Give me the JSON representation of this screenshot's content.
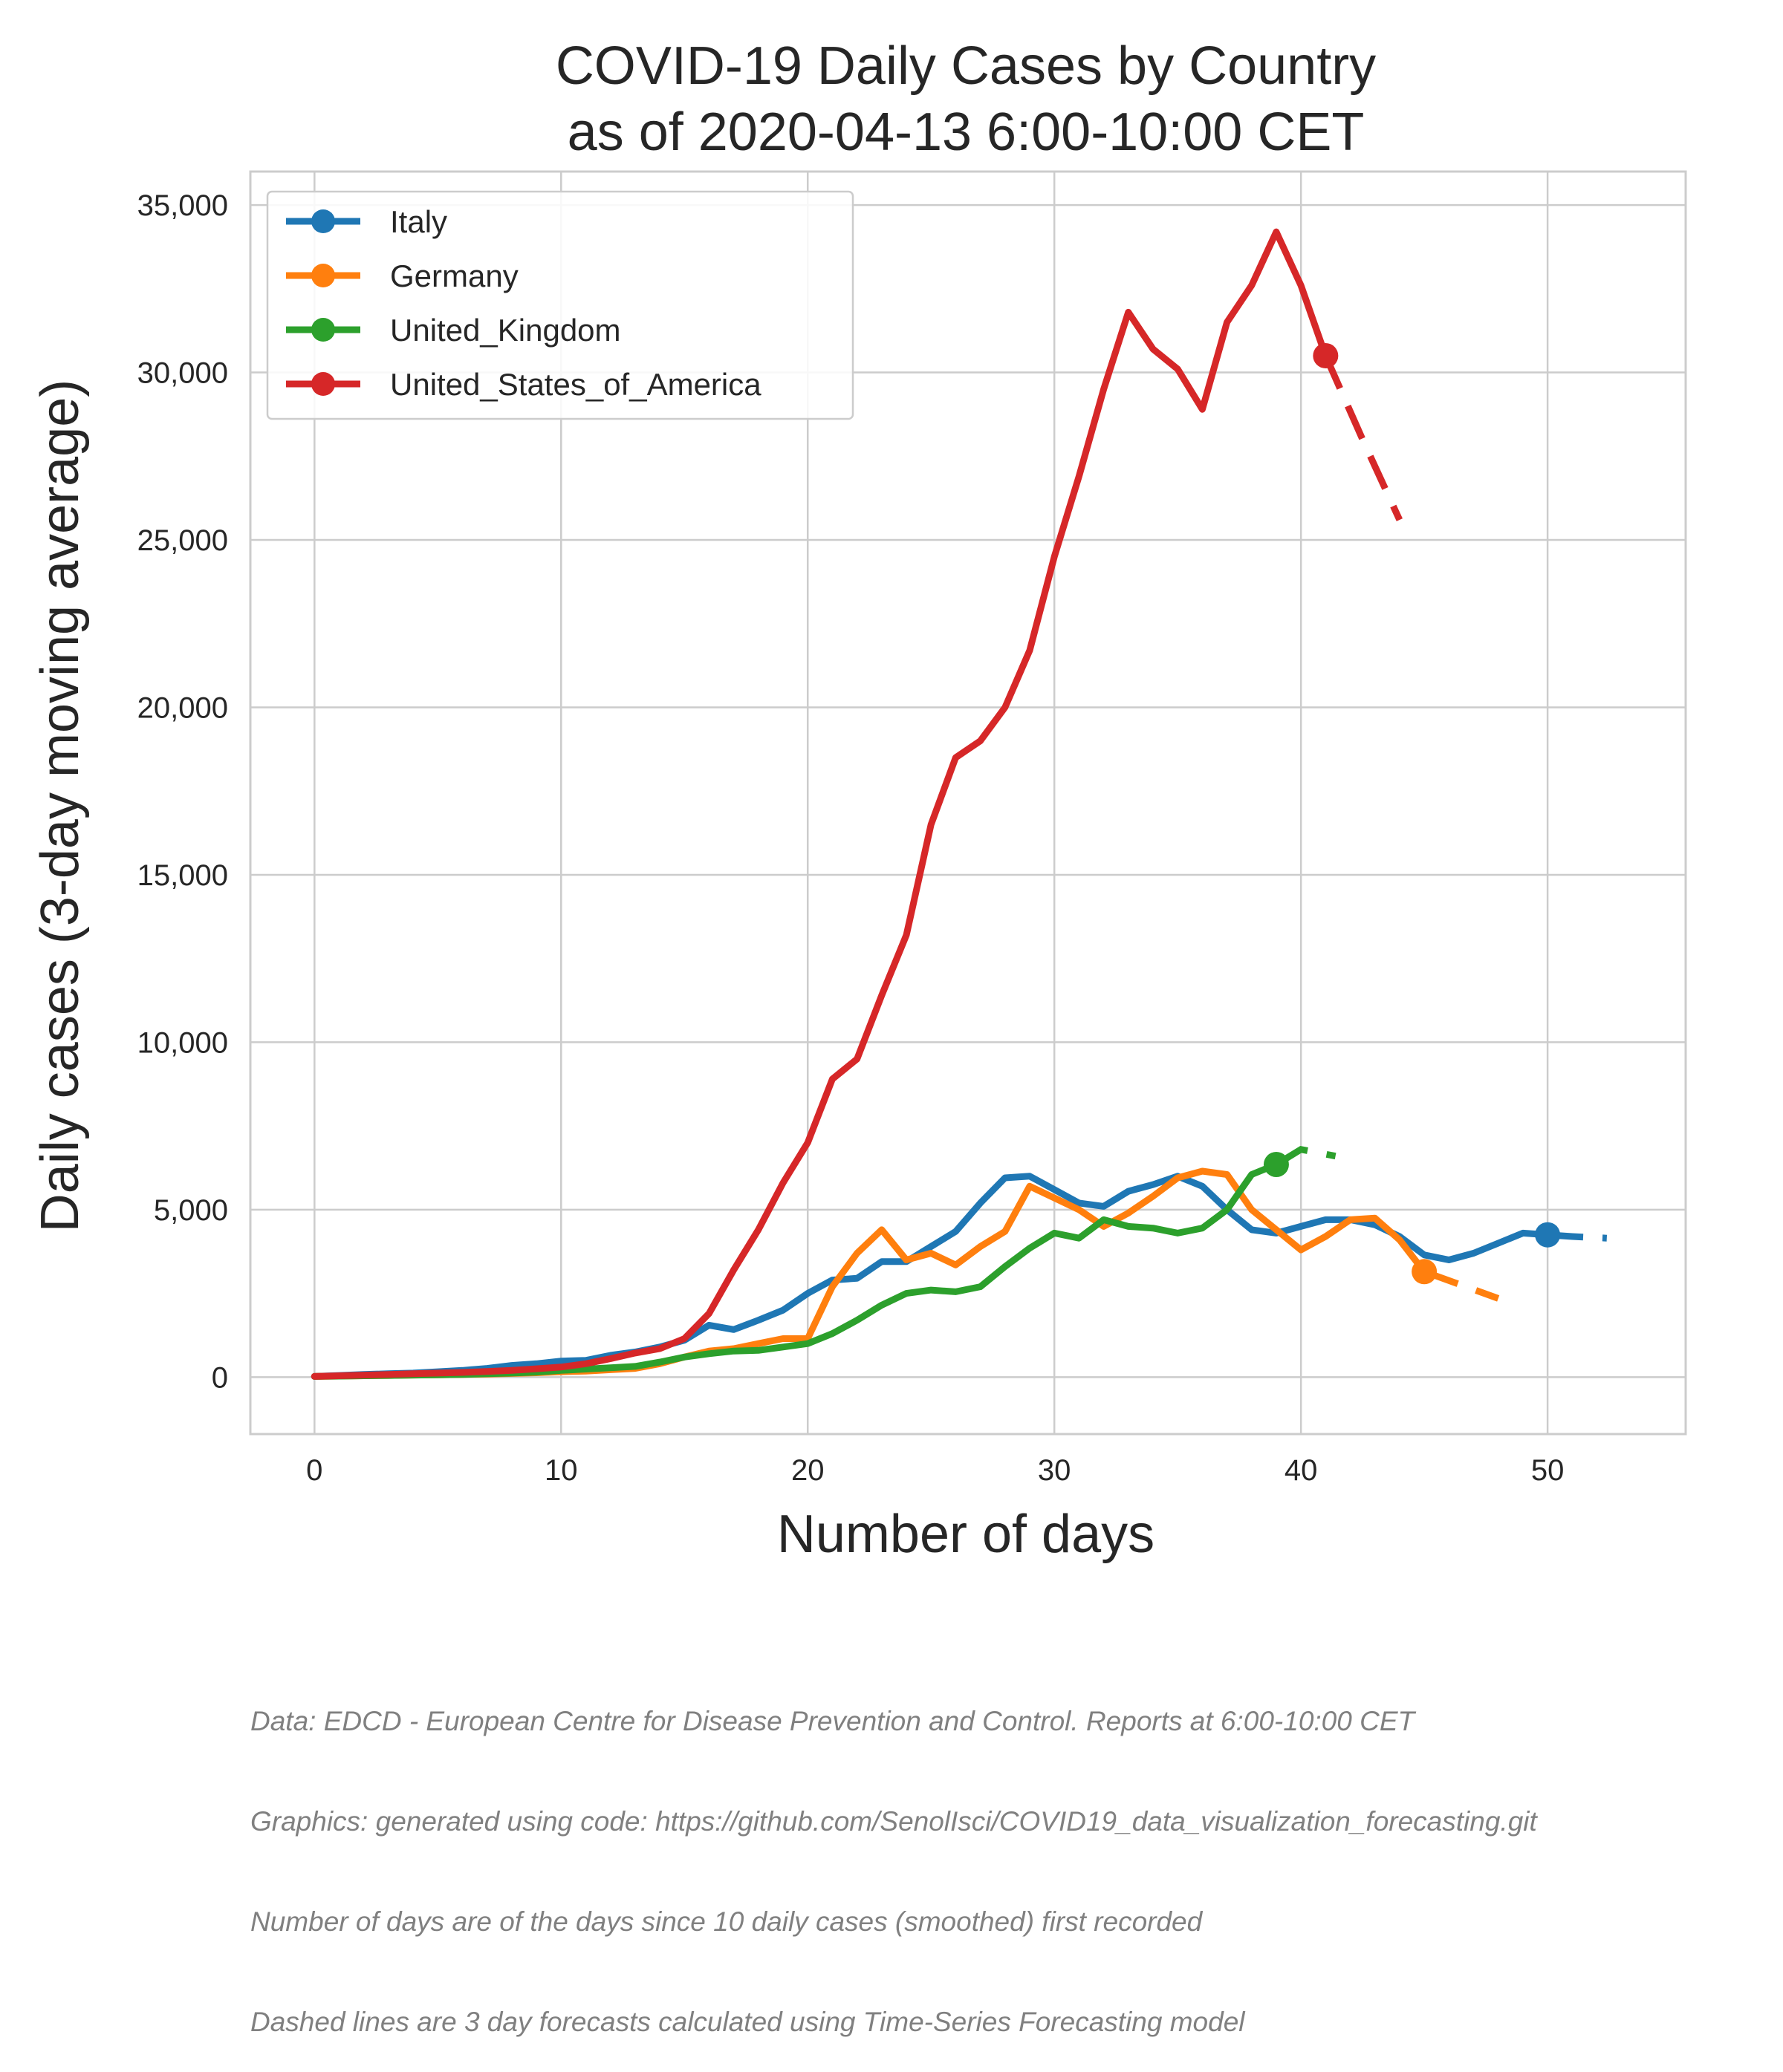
{
  "chart_data": {
    "type": "line",
    "title_lines": [
      "COVID-19 Daily Cases by Country",
      "as of 2020-04-13 6:00-10:00 CET"
    ],
    "xlabel": "Number of days",
    "ylabel": "Daily cases (3-day moving average)",
    "xlim": [
      -2.6,
      55.6
    ],
    "ylim": [
      -1700,
      36000
    ],
    "x_ticks": [
      0,
      10,
      20,
      30,
      40,
      50
    ],
    "y_ticks": [
      0,
      5000,
      10000,
      15000,
      20000,
      25000,
      30000,
      35000
    ],
    "y_tick_labels": [
      "0",
      "5,000",
      "10,000",
      "15,000",
      "20,000",
      "25,000",
      "30,000",
      "35,000"
    ],
    "grid": true,
    "legend_position": "top-left",
    "series": [
      {
        "name": "Italy",
        "color": "#1f77b4",
        "x": [
          0,
          1,
          2,
          3,
          4,
          5,
          6,
          7,
          8,
          9,
          10,
          11,
          12,
          13,
          14,
          15,
          16,
          17,
          18,
          19,
          20,
          21,
          22,
          23,
          24,
          25,
          26,
          27,
          28,
          29,
          30,
          31,
          32,
          33,
          34,
          35,
          36,
          37,
          38,
          39,
          40,
          41,
          42,
          43,
          44,
          45,
          46,
          47,
          48,
          49,
          50
        ],
        "y": [
          20,
          50,
          80,
          100,
          120,
          160,
          200,
          260,
          350,
          400,
          480,
          500,
          650,
          750,
          900,
          1100,
          1550,
          1420,
          1700,
          2000,
          2500,
          2900,
          2950,
          3450,
          3450,
          3900,
          4350,
          5200,
          5950,
          6000,
          5600,
          5200,
          5100,
          5550,
          5750,
          6000,
          5700,
          5000,
          4400,
          4300,
          4500,
          4700,
          4700,
          4550,
          4200,
          3650,
          3500,
          3700,
          4000,
          4300,
          4250
        ],
        "forecast": {
          "x": [
            50,
            51,
            52.4
          ],
          "y": [
            4250,
            4200,
            4150
          ]
        }
      },
      {
        "name": "Germany",
        "color": "#ff7f0e",
        "x": [
          0,
          1,
          2,
          3,
          4,
          5,
          6,
          7,
          8,
          9,
          10,
          11,
          12,
          13,
          14,
          15,
          16,
          17,
          18,
          19,
          20,
          21,
          22,
          23,
          24,
          25,
          26,
          27,
          28,
          29,
          30,
          31,
          32,
          33,
          34,
          35,
          36,
          37,
          38,
          39,
          40,
          41,
          42,
          43,
          44,
          45
        ],
        "y": [
          20,
          30,
          40,
          50,
          60,
          70,
          80,
          90,
          110,
          130,
          160,
          180,
          220,
          260,
          400,
          600,
          780,
          850,
          1000,
          1150,
          1150,
          2700,
          3700,
          4400,
          3500,
          3700,
          3350,
          3900,
          4350,
          5700,
          5350,
          5000,
          4500,
          4900,
          5400,
          5950,
          6150,
          6050,
          5000,
          4400,
          3800,
          4200,
          4700,
          4750,
          4100,
          3150
        ],
        "forecast": {
          "x": [
            45,
            46.5,
            48
          ],
          "y": [
            3150,
            2750,
            2350
          ]
        }
      },
      {
        "name": "United_Kingdom",
        "color": "#2ca02c",
        "x": [
          0,
          1,
          2,
          3,
          4,
          5,
          6,
          7,
          8,
          9,
          10,
          11,
          12,
          13,
          14,
          15,
          16,
          17,
          18,
          19,
          20,
          21,
          22,
          23,
          24,
          25,
          26,
          27,
          28,
          29,
          30,
          31,
          32,
          33,
          34,
          35,
          36,
          37,
          38,
          39
        ],
        "y": [
          20,
          30,
          40,
          50,
          60,
          70,
          80,
          100,
          120,
          150,
          200,
          240,
          280,
          320,
          450,
          600,
          700,
          780,
          800,
          900,
          1000,
          1300,
          1700,
          2150,
          2500,
          2600,
          2550,
          2700,
          3300,
          3850,
          4300,
          4150,
          4700,
          4500,
          4450,
          4300,
          4450,
          5000,
          6050,
          6350
        ],
        "forecast": {
          "x": [
            39,
            40,
            41.4
          ],
          "y": [
            6350,
            6800,
            6600
          ]
        }
      },
      {
        "name": "United_States_of_America",
        "color": "#d62728",
        "x": [
          0,
          1,
          2,
          3,
          4,
          5,
          6,
          7,
          8,
          9,
          10,
          11,
          12,
          13,
          14,
          15,
          16,
          17,
          18,
          19,
          20,
          21,
          22,
          23,
          24,
          25,
          26,
          27,
          28,
          29,
          30,
          31,
          32,
          33,
          34,
          35,
          36,
          37,
          38,
          39,
          40,
          41
        ],
        "y": [
          20,
          40,
          60,
          80,
          100,
          120,
          140,
          170,
          200,
          250,
          300,
          400,
          550,
          720,
          850,
          1150,
          1900,
          3200,
          4400,
          5800,
          7000,
          8900,
          9500,
          11400,
          13200,
          16500,
          18500,
          19000,
          20000,
          21700,
          24500,
          26900,
          29500,
          31800,
          30700,
          30100,
          28900,
          31500,
          32600,
          34200,
          32600,
          30500
        ],
        "forecast": {
          "x": [
            41,
            42.5,
            44
          ],
          "y": [
            30500,
            28000,
            25600
          ]
        }
      }
    ]
  },
  "footer_lines": [
    "Data: EDCD - European Centre for Disease Prevention and Control. Reports at 6:00-10:00 CET",
    "Graphics: generated using code: https://github.com/SenolIsci/COVID19_data_visualization_forecasting.git",
    "Number of days are of the days since 10 daily cases (smoothed) first recorded",
    "Dashed lines are 3 day forecasts calculated using Time-Series Forecasting model"
  ]
}
